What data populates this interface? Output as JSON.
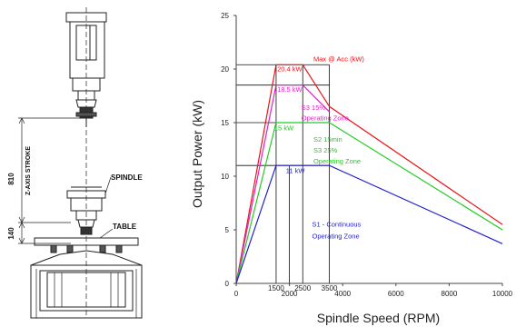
{
  "drawing": {
    "stroke_label": "Z-AXIS STROKE",
    "stroke_value": "810",
    "lower_value": "140",
    "spindle_label": "SPINDLE",
    "table_label": "TABLE"
  },
  "chart_data": {
    "type": "line",
    "xlabel": "Spindle Speed (RPM)",
    "ylabel": "Output Power (kW)",
    "xlim": [
      0,
      10000
    ],
    "ylim": [
      0,
      25
    ],
    "xticks": [
      0,
      2000,
      4000,
      6000,
      8000,
      10000
    ],
    "extra_xticks": [
      1500,
      2500,
      3500
    ],
    "yticks": [
      0,
      5,
      10,
      15,
      20,
      25
    ],
    "series": [
      {
        "name": "Max @ Acc (kW)",
        "color": "#e8141a",
        "x": [
          0,
          1500,
          2500,
          3500,
          10000
        ],
        "y": [
          0,
          20.4,
          20.4,
          16.5,
          5.5
        ]
      },
      {
        "name": "S3 15% Operating Zone",
        "color": "#e020c8",
        "x": [
          0,
          1500,
          2500,
          3500
        ],
        "y": [
          0,
          18.5,
          18.5,
          16.0
        ]
      },
      {
        "name": "S2 15min S3 25% Operating Zone",
        "color": "#22cc22",
        "x": [
          0,
          1500,
          2500,
          3500,
          10000
        ],
        "y": [
          0,
          15,
          15,
          15,
          5.0
        ]
      },
      {
        "name": "S1 - Continuous Operating Zone",
        "color": "#2222cc",
        "x": [
          0,
          1500,
          2000,
          3500,
          10000
        ],
        "y": [
          0,
          11,
          11,
          11,
          3.7
        ]
      }
    ],
    "reference_lines": {
      "vertical_x": [
        1500,
        2000,
        2500,
        3500
      ],
      "horizontal_y": [
        11,
        15,
        18.5,
        20.4
      ]
    },
    "annotations": [
      {
        "text": "Max @ Acc (kW)",
        "color": "#e8141a",
        "x": 2900,
        "y": 20.7
      },
      {
        "text": "20.4 kW",
        "color": "#e8141a",
        "x": 1540,
        "y": 19.8
      },
      {
        "text": "18.5 kW",
        "color": "#e020c8",
        "x": 1540,
        "y": 17.9
      },
      {
        "text": "S3 15%",
        "color": "#e020c8",
        "x": 2450,
        "y": 16.2
      },
      {
        "text": "Operating Zone",
        "color": "#e020c8",
        "x": 2450,
        "y": 15.2
      },
      {
        "text": "15 kW",
        "color": "#22cc22",
        "x": 1430,
        "y": 14.3
      },
      {
        "text": "S2 15min",
        "color": "#22cc22",
        "x": 2900,
        "y": 13.2
      },
      {
        "text": "S3 25%",
        "color": "#22cc22",
        "x": 2900,
        "y": 12.2
      },
      {
        "text": "Operating Zone",
        "color": "#22cc22",
        "x": 2900,
        "y": 11.2
      },
      {
        "text": "11 kW",
        "color": "#2222cc",
        "x": 1870,
        "y": 10.3
      },
      {
        "text": "S1 - Continuous",
        "color": "#2222cc",
        "x": 2850,
        "y": 5.3
      },
      {
        "text": "Operating Zone",
        "color": "#2222cc",
        "x": 2850,
        "y": 4.2
      }
    ]
  }
}
